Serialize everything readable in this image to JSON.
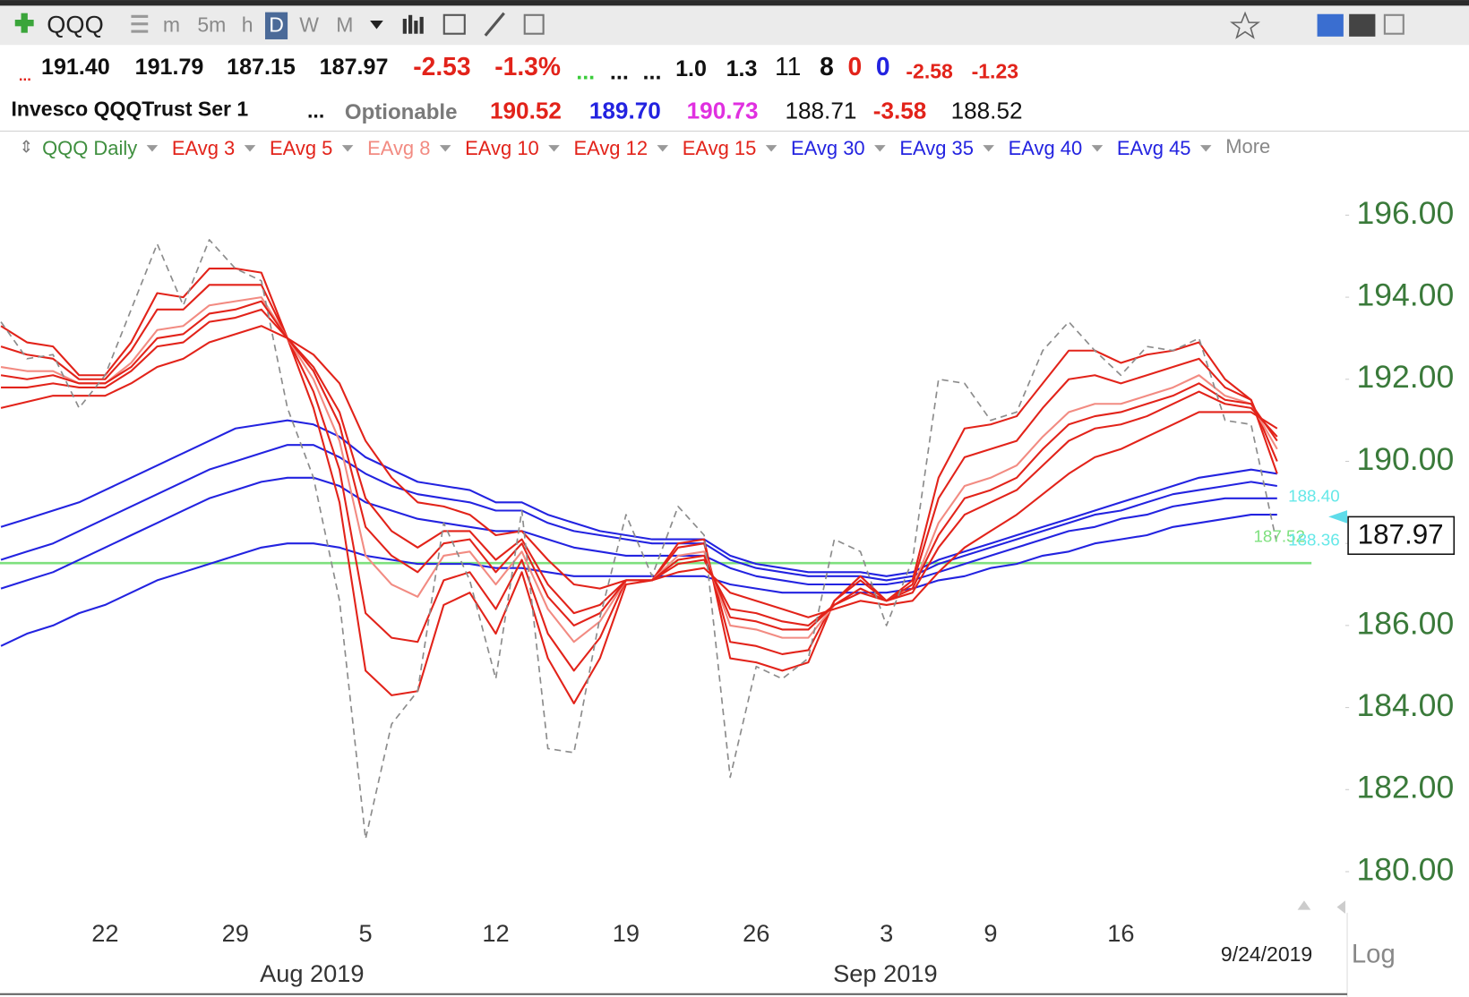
{
  "toolbar": {
    "symbol": "QQQ",
    "intervals": [
      "m",
      "5m",
      "h",
      "D",
      "W",
      "M"
    ]
  },
  "quote": {
    "line1": [
      "...",
      "191.40",
      "191.79",
      "187.15",
      "187.97",
      "-2.53",
      "-1.3%",
      "...",
      "...",
      "...",
      "1.0",
      "1.3",
      "11",
      "8",
      "0",
      "0",
      "-2.58",
      "-1.23"
    ],
    "line2": [
      "Invesco QQQTrust Ser 1",
      "...",
      "Optionable",
      "190.52",
      "189.70",
      "190.73",
      "188.71",
      "-3.58",
      "188.52"
    ]
  },
  "chart_data": {
    "type": "line",
    "categories": [
      null,
      null,
      null,
      null,
      "22",
      null,
      null,
      null,
      null,
      "29",
      null,
      null,
      null,
      null,
      "5",
      null,
      null,
      null,
      null,
      "12",
      null,
      null,
      null,
      null,
      "19",
      null,
      null,
      null,
      null,
      "26",
      null,
      null,
      null,
      null,
      "3",
      null,
      null,
      null,
      "9",
      null,
      null,
      null,
      null,
      "16",
      null,
      null,
      null,
      null,
      null,
      null
    ],
    "x_groups": [
      "Aug 2019",
      "Sep 2019"
    ],
    "series": [
      {
        "name": "QQQ Daily",
        "color": "#8c8c8c",
        "label_color": "#3f8f3f",
        "dashed": true,
        "values": [
          193.4,
          192.5,
          192.6,
          191.3,
          192.1,
          193.7,
          195.3,
          193.8,
          195.4,
          194.7,
          194.4,
          191.3,
          189.6,
          186.6,
          180.8,
          183.6,
          184.4,
          188.5,
          187.1,
          184.7,
          188.8,
          183.0,
          182.9,
          186.2,
          188.7,
          187.2,
          188.9,
          188.2,
          182.3,
          185.0,
          184.7,
          185.2,
          188.1,
          187.8,
          186.0,
          187.6,
          192.0,
          191.9,
          191.0,
          191.2,
          192.7,
          193.4,
          192.7,
          192.1,
          192.8,
          192.7,
          193.0,
          191.0,
          190.9,
          187.97
        ]
      },
      {
        "name": "EAvg 3",
        "color": "#e2231a",
        "label_color": "#e2231a",
        "values": [
          193.3,
          192.9,
          192.8,
          192.1,
          192.1,
          192.9,
          194.1,
          194.0,
          194.7,
          194.7,
          194.6,
          193.0,
          191.3,
          189.0,
          184.9,
          184.3,
          184.4,
          186.5,
          186.8,
          185.8,
          187.3,
          185.2,
          184.1,
          185.2,
          187.0,
          187.1,
          188.0,
          188.1,
          185.2,
          185.1,
          184.9,
          185.1,
          186.6,
          187.2,
          186.6,
          187.1,
          189.6,
          190.8,
          190.9,
          191.1,
          191.9,
          192.7,
          192.7,
          192.4,
          192.6,
          192.7,
          192.9,
          192.0,
          191.5,
          189.7
        ]
      },
      {
        "name": "EAvg 5",
        "color": "#e2231a",
        "label_color": "#e2231a",
        "values": [
          192.8,
          192.6,
          192.5,
          192.0,
          192.0,
          192.7,
          193.7,
          193.7,
          194.3,
          194.3,
          194.3,
          193.0,
          191.7,
          189.8,
          186.3,
          185.7,
          185.6,
          187.1,
          187.3,
          186.4,
          187.6,
          185.8,
          184.9,
          185.7,
          187.1,
          187.1,
          187.9,
          188.0,
          185.6,
          185.5,
          185.3,
          185.4,
          186.6,
          187.1,
          186.6,
          187.0,
          189.1,
          190.1,
          190.3,
          190.5,
          191.3,
          192.0,
          192.1,
          191.9,
          192.1,
          192.3,
          192.5,
          191.8,
          191.5,
          190.0
        ]
      },
      {
        "name": "EAvg 8",
        "color": "#f28b82",
        "label_color": "#f28b82",
        "values": [
          192.3,
          192.2,
          192.2,
          191.9,
          191.9,
          192.4,
          193.2,
          193.3,
          193.8,
          193.9,
          194.0,
          193.0,
          192.0,
          190.5,
          187.7,
          187.0,
          186.7,
          187.7,
          187.8,
          187.0,
          187.8,
          186.4,
          185.6,
          186.1,
          187.1,
          187.1,
          187.7,
          187.8,
          186.0,
          185.9,
          185.7,
          185.7,
          186.5,
          186.9,
          186.6,
          186.9,
          188.5,
          189.4,
          189.6,
          189.9,
          190.6,
          191.2,
          191.4,
          191.4,
          191.6,
          191.8,
          192.1,
          191.6,
          191.4,
          190.3
        ]
      },
      {
        "name": "EAvg 10",
        "color": "#e2231a",
        "label_color": "#e2231a",
        "values": [
          192.1,
          192.0,
          192.1,
          191.9,
          191.9,
          192.3,
          193.0,
          193.1,
          193.6,
          193.7,
          193.9,
          193.0,
          192.2,
          190.9,
          188.4,
          187.7,
          187.3,
          188.0,
          188.1,
          187.3,
          188.0,
          186.7,
          186.0,
          186.3,
          187.1,
          187.1,
          187.6,
          187.7,
          186.2,
          186.1,
          185.9,
          185.9,
          186.5,
          186.9,
          186.6,
          186.9,
          188.2,
          189.1,
          189.3,
          189.6,
          190.3,
          190.9,
          191.1,
          191.2,
          191.4,
          191.6,
          191.9,
          191.5,
          191.4,
          190.5
        ]
      },
      {
        "name": "EAvg 12",
        "color": "#e2231a",
        "label_color": "#e2231a",
        "values": [
          191.8,
          191.8,
          191.9,
          191.8,
          191.8,
          192.2,
          192.8,
          192.9,
          193.4,
          193.5,
          193.7,
          193.0,
          192.3,
          191.2,
          189.1,
          188.3,
          187.9,
          188.3,
          188.3,
          187.6,
          188.1,
          187.0,
          186.3,
          186.5,
          187.1,
          187.1,
          187.5,
          187.6,
          186.4,
          186.3,
          186.1,
          186.0,
          186.5,
          186.8,
          186.6,
          186.8,
          187.9,
          188.7,
          189.0,
          189.3,
          189.9,
          190.5,
          190.8,
          190.9,
          191.1,
          191.4,
          191.7,
          191.4,
          191.3,
          190.6
        ]
      },
      {
        "name": "EAvg 15",
        "color": "#e2231a",
        "label_color": "#e2231a",
        "values": [
          191.3,
          191.45,
          191.6,
          191.6,
          191.6,
          191.9,
          192.3,
          192.5,
          192.9,
          193.1,
          193.3,
          193.0,
          192.6,
          191.9,
          190.5,
          189.6,
          189.0,
          188.9,
          188.7,
          188.2,
          188.3,
          187.6,
          187.0,
          186.9,
          187.1,
          187.1,
          187.3,
          187.4,
          186.8,
          186.6,
          186.4,
          186.2,
          186.4,
          186.6,
          186.5,
          186.6,
          187.3,
          187.9,
          188.3,
          188.7,
          189.2,
          189.7,
          190.1,
          190.3,
          190.6,
          190.9,
          191.2,
          191.2,
          191.2,
          190.8
        ]
      },
      {
        "name": "EAvg 30",
        "color": "#2323e0",
        "label_color": "#2323e0",
        "values": [
          188.4,
          188.6,
          188.8,
          189.0,
          189.3,
          189.6,
          189.9,
          190.2,
          190.5,
          190.8,
          190.9,
          191.0,
          190.9,
          190.6,
          190.1,
          189.8,
          189.5,
          189.4,
          189.3,
          189.0,
          189.0,
          188.7,
          188.5,
          188.3,
          188.2,
          188.1,
          188.1,
          188.1,
          187.7,
          187.5,
          187.4,
          187.3,
          187.3,
          187.3,
          187.2,
          187.3,
          187.6,
          187.8,
          188.0,
          188.2,
          188.4,
          188.6,
          188.8,
          189.0,
          189.2,
          189.4,
          189.6,
          189.7,
          189.8,
          189.7
        ]
      },
      {
        "name": "EAvg 35",
        "color": "#2323e0",
        "label_color": "#2323e0",
        "values": [
          187.6,
          187.8,
          188.0,
          188.3,
          188.6,
          188.9,
          189.2,
          189.5,
          189.8,
          190.0,
          190.2,
          190.4,
          190.4,
          190.1,
          189.7,
          189.4,
          189.2,
          189.1,
          189.0,
          188.8,
          188.8,
          188.5,
          188.3,
          188.2,
          188.1,
          188.0,
          188.0,
          188.0,
          187.6,
          187.4,
          187.3,
          187.2,
          187.2,
          187.2,
          187.1,
          187.2,
          187.5,
          187.7,
          187.9,
          188.1,
          188.3,
          188.5,
          188.7,
          188.8,
          189.0,
          189.2,
          189.3,
          189.4,
          189.5,
          189.4
        ]
      },
      {
        "name": "EAvg 40",
        "color": "#2323e0",
        "label_color": "#2323e0",
        "values": [
          186.9,
          187.1,
          187.3,
          187.6,
          187.9,
          188.2,
          188.5,
          188.8,
          189.1,
          189.3,
          189.5,
          189.6,
          189.6,
          189.4,
          189.0,
          188.8,
          188.6,
          188.5,
          188.4,
          188.3,
          188.3,
          188.1,
          187.9,
          187.8,
          187.7,
          187.7,
          187.7,
          187.7,
          187.4,
          187.2,
          187.1,
          187.0,
          187.0,
          187.0,
          187.0,
          187.1,
          187.3,
          187.5,
          187.7,
          187.9,
          188.1,
          188.3,
          188.4,
          188.6,
          188.7,
          188.9,
          189.0,
          189.1,
          189.1,
          189.1
        ]
      },
      {
        "name": "EAvg 45",
        "color": "#2323e0",
        "label_color": "#2323e0",
        "values": [
          185.5,
          185.8,
          186.0,
          186.3,
          186.5,
          186.8,
          187.1,
          187.3,
          187.5,
          187.7,
          187.9,
          188.0,
          188.0,
          187.9,
          187.7,
          187.6,
          187.5,
          187.5,
          187.5,
          187.4,
          187.4,
          187.3,
          187.2,
          187.2,
          187.2,
          187.2,
          187.2,
          187.2,
          187.0,
          186.9,
          186.8,
          186.8,
          186.8,
          186.8,
          186.8,
          186.9,
          187.1,
          187.2,
          187.4,
          187.5,
          187.7,
          187.8,
          188.0,
          188.1,
          188.2,
          188.4,
          188.5,
          188.6,
          188.7,
          188.7
        ]
      }
    ],
    "more_label": "More",
    "ylim": [
      179,
      197.25
    ],
    "yticks": [
      {
        "value": 180,
        "label": "180.00"
      },
      {
        "value": 182,
        "label": "182.00"
      },
      {
        "value": 184,
        "label": "184.00"
      },
      {
        "value": 186,
        "label": "186.00"
      },
      {
        "value": 188,
        "label": "188.00"
      },
      {
        "value": 190,
        "label": "190.00"
      },
      {
        "value": 192,
        "label": "192.00"
      },
      {
        "value": 194,
        "label": "194.00"
      },
      {
        "value": 196,
        "label": "196.00"
      }
    ],
    "yticks_skip_label": 188,
    "hline": {
      "value": 187.52,
      "label": "187.52",
      "color": "#7ee07e"
    },
    "price_labels": [
      {
        "value": 188.4,
        "label": "188.40",
        "color": "#66e8e8"
      },
      {
        "value": 188.36,
        "label": "188.36",
        "color": "#66e8e8"
      }
    ],
    "last_price": {
      "value": 187.97,
      "label": "187.97"
    },
    "date_label": "9/24/2019",
    "scale_label": "Log",
    "log_scale": false,
    "grid": false
  }
}
